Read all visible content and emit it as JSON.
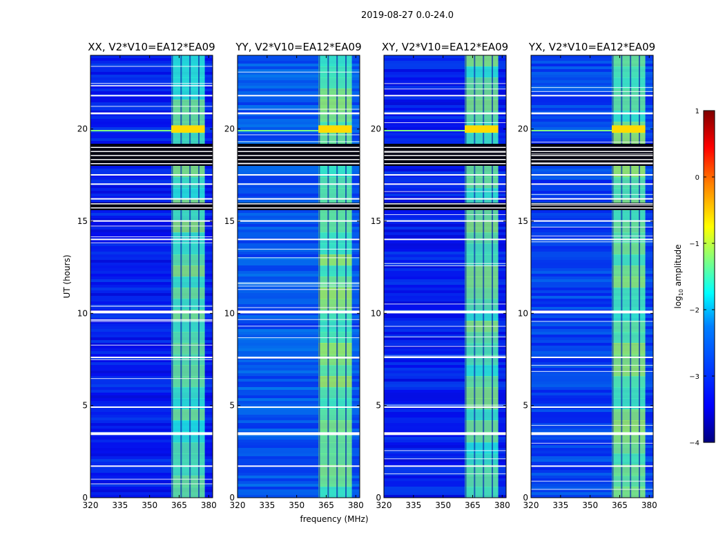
{
  "chart_data": {
    "type": "heatmap",
    "suptitle": "2019-08-27 0.0-24.0",
    "xlabel": "frequency (MHz)",
    "ylabel": "UT (hours)",
    "xlim": [
      320,
      382
    ],
    "ylim": [
      0,
      24
    ],
    "xticks": [
      "320",
      "335",
      "350",
      "365",
      "380"
    ],
    "yticks": [
      "0",
      "5",
      "10",
      "15",
      "20"
    ],
    "panels": [
      {
        "title": "XX, V2*V10=EA12*EA09",
        "pol": "XX",
        "base": 0.15
      },
      {
        "title": "YY, V2*V10=EA12*EA09",
        "pol": "YY",
        "base": 0.25
      },
      {
        "title": "XY, V2*V10=EA12*EA09",
        "pol": "XY",
        "base": 0.15
      },
      {
        "title": "YX, V2*V10=EA12*EA09",
        "pol": "YX",
        "base": 0.22
      }
    ],
    "signal_band_mhz": [
      361,
      378
    ],
    "signal_channels_mhz": [
      361.5,
      366,
      370.5,
      375
    ],
    "strong_rfi_ut_hours": [
      19.8,
      20.2
    ],
    "data_gaps_ut_hours": [
      [
        10.0,
        10.15
      ],
      [
        3.4,
        3.55
      ],
      [
        20.8,
        20.9
      ],
      [
        14.0,
        14.05
      ],
      [
        17.0,
        17.05
      ],
      [
        17.5,
        17.55
      ],
      [
        16.2,
        16.25
      ],
      [
        7.6,
        7.65
      ],
      [
        4.9,
        4.95
      ],
      [
        1.7,
        1.75
      ],
      [
        21.8,
        21.85
      ],
      [
        15.0,
        15.05
      ]
    ],
    "masked_ut_hours": [
      [
        18.0,
        19.2
      ],
      [
        15.6,
        16.0
      ]
    ],
    "colorbar": {
      "label": "log10 amplitude",
      "label_base": "log",
      "label_sub": "10",
      "label_rest": " amplitude",
      "range": [
        -4,
        1
      ],
      "ticks": [
        "1",
        "0",
        "−1",
        "−2",
        "−3",
        "−4"
      ],
      "colormap": [
        "#00007f",
        "#0000ff",
        "#0080ff",
        "#00ffff",
        "#80ff80",
        "#ffff00",
        "#ff8000",
        "#ff0000",
        "#7f0000"
      ]
    }
  }
}
